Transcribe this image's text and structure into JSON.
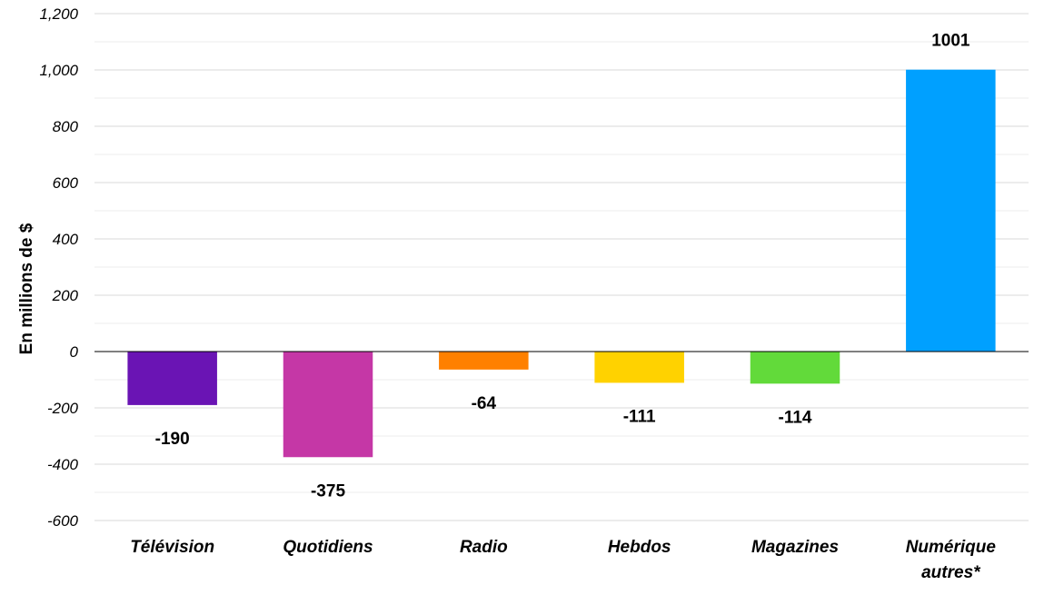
{
  "chart_data": {
    "type": "bar",
    "title": "",
    "xlabel": "",
    "ylabel": "En millions de $",
    "ylim": [
      -600,
      1200
    ],
    "yticks": [
      -600,
      -400,
      -200,
      0,
      200,
      400,
      600,
      800,
      1000,
      1200
    ],
    "ytick_labels": [
      "-600",
      "-400",
      "-200",
      "0",
      "200",
      "400",
      "600",
      "800",
      "1,000",
      "1,200"
    ],
    "grid": true,
    "legend": "none",
    "categories": [
      [
        "Télévision"
      ],
      [
        "Quotidiens"
      ],
      [
        "Radio"
      ],
      [
        "Hebdos"
      ],
      [
        "Magazines"
      ],
      [
        "Numérique",
        "autres*"
      ]
    ],
    "values": [
      -190,
      -375,
      -64,
      -111,
      -114,
      1001
    ],
    "data_labels": [
      "-190",
      "-375",
      "-64",
      "-111",
      "-114",
      "1001"
    ],
    "colors": [
      "#6A14B4",
      "#C537A6",
      "#FF8000",
      "#FFD200",
      "#62DA3A",
      "#00A0FF"
    ]
  }
}
